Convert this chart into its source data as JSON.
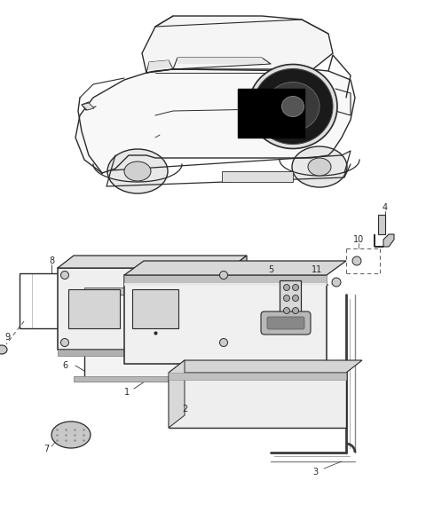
{
  "bg_color": "#ffffff",
  "lc": "#2a2a2a",
  "gray1": "#f2f2f2",
  "gray2": "#d8d8d8",
  "gray3": "#aaaaaa",
  "gray4": "#888888",
  "black": "#111111"
}
